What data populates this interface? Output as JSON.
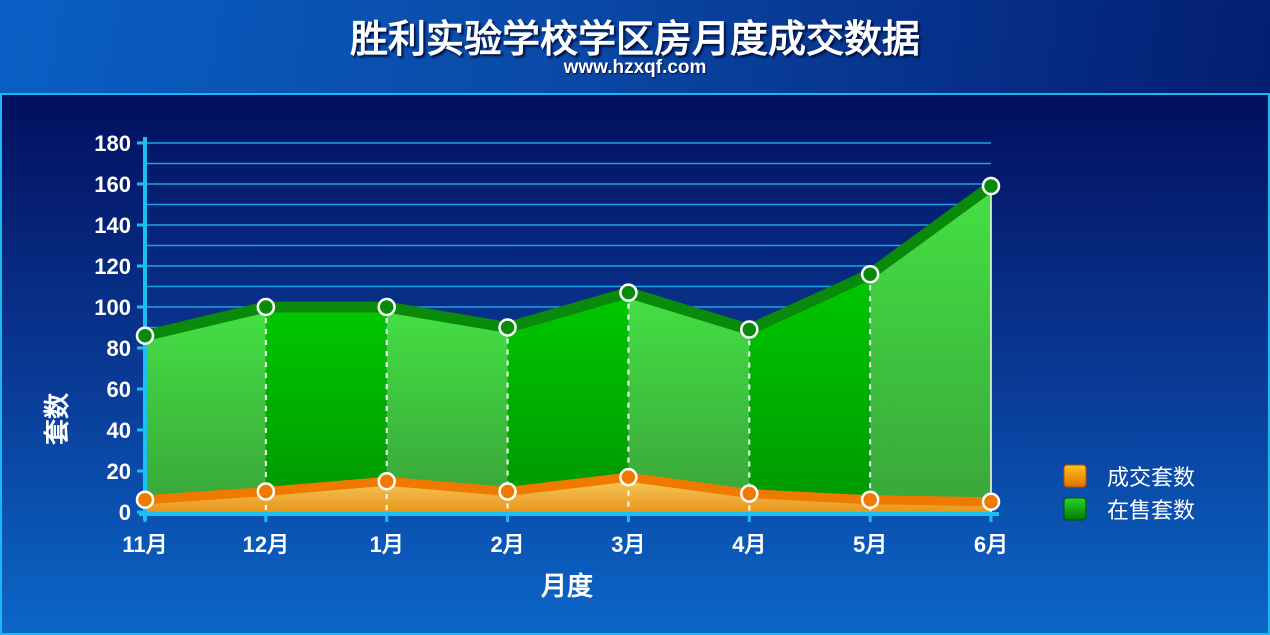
{
  "header": {
    "title": "胜利实验学校学区房月度成交数据",
    "subtitle": "www.hzxqf.com"
  },
  "colors": {
    "sold_line": "#f07a00",
    "sold_fill": "#f5c04a",
    "listed_line": "#0a8a0a",
    "listed_fill_light": "#4ccc4c",
    "listed_fill_dark": "#00b800",
    "grid": "#1ea0e8",
    "axis": "#19c0f0",
    "marker_stroke": "#ffffff"
  },
  "chart_data": {
    "type": "area",
    "xlabel": "月度",
    "ylabel": "套数",
    "ylim": [
      0,
      180
    ],
    "yticks": [
      0,
      20,
      40,
      60,
      80,
      100,
      120,
      140,
      160,
      180
    ],
    "grid": true,
    "legend_position": "right",
    "categories": [
      "11月",
      "12月",
      "1月",
      "2月",
      "3月",
      "4月",
      "5月",
      "6月"
    ],
    "series": [
      {
        "name": "成交套数",
        "values": [
          6,
          10,
          15,
          10,
          17,
          9,
          6,
          5
        ]
      },
      {
        "name": "在售套数",
        "values": [
          86,
          100,
          100,
          90,
          107,
          89,
          116,
          159
        ]
      }
    ]
  }
}
